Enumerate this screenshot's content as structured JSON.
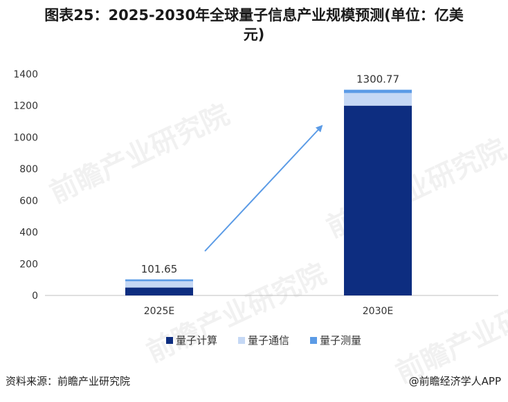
{
  "title_line1": "图表25：2025-2030年全球量子信息产业规模预测(单位：亿美",
  "title_line2": "元)",
  "footer": {
    "source": "资料来源：前瞻产业研究院",
    "credit": "@前瞻经济学人APP"
  },
  "watermark_text": "前瞻产业研究院",
  "chart_data": {
    "type": "bar",
    "stacked": true,
    "categories": [
      "2025E",
      "2030E"
    ],
    "series": [
      {
        "name": "量子计算",
        "values": [
          50,
          1200
        ],
        "color": "#0d2d80"
      },
      {
        "name": "量子通信",
        "values": [
          40,
          80
        ],
        "color": "#c5d8f5"
      },
      {
        "name": "量子测量",
        "values": [
          11.65,
          20.77
        ],
        "color": "#5b9be6"
      }
    ],
    "totals": [
      "101.65",
      "1300.77"
    ],
    "ylim": [
      0,
      1400
    ],
    "yticks": [
      "0",
      "200",
      "400",
      "600",
      "800",
      "1000",
      "1200",
      "1400"
    ],
    "grid": false,
    "legend": "bottom",
    "annotation": "arrow from 2025E to 2030E"
  }
}
